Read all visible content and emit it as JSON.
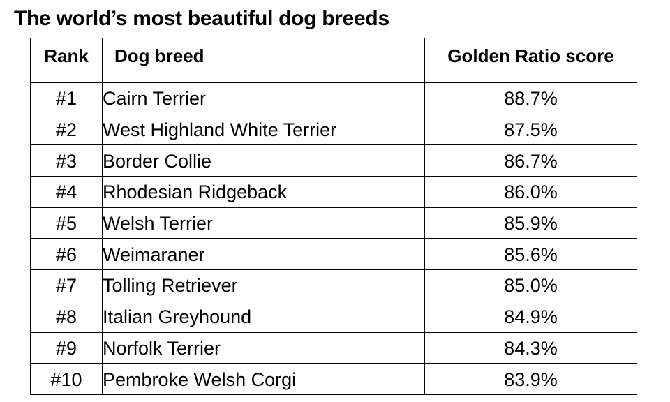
{
  "title": "The world’s most beautiful dog breeds",
  "table": {
    "headers": {
      "rank": "Rank",
      "breed": "Dog breed",
      "score": "Golden Ratio score"
    },
    "rows": [
      {
        "rank": "#1",
        "breed": "Cairn Terrier",
        "score": "88.7%"
      },
      {
        "rank": "#2",
        "breed": "West Highland White Terrier",
        "score": "87.5%"
      },
      {
        "rank": "#3",
        "breed": "Border Collie",
        "score": "86.7%"
      },
      {
        "rank": "#4",
        "breed": "Rhodesian Ridgeback",
        "score": "86.0%"
      },
      {
        "rank": "#5",
        "breed": "Welsh Terrier",
        "score": "85.9%"
      },
      {
        "rank": "#6",
        "breed": "Weimaraner",
        "score": "85.6%"
      },
      {
        "rank": "#7",
        "breed": "Tolling Retriever",
        "score": "85.0%"
      },
      {
        "rank": "#8",
        "breed": "Italian Greyhound",
        "score": "84.9%"
      },
      {
        "rank": "#9",
        "breed": "Norfolk Terrier",
        "score": "84.3%"
      },
      {
        "rank": "#10",
        "breed": "Pembroke Welsh Corgi",
        "score": "83.9%"
      }
    ]
  }
}
